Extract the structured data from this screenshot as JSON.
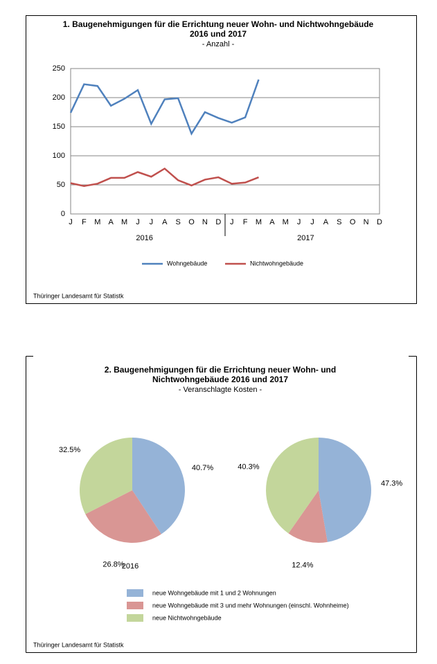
{
  "chart_data": [
    {
      "type": "line",
      "title": [
        "1. Baugenehmigungen für die Errichtung neuer Wohn- und Nichtwohngebäude",
        "2016 und 2017"
      ],
      "subtitle": "- Anzahl -",
      "categories": [
        "J",
        "F",
        "M",
        "A",
        "M",
        "J",
        "J",
        "A",
        "S",
        "O",
        "N",
        "D",
        "J",
        "F",
        "M",
        "A",
        "M",
        "J",
        "J",
        "A",
        "S",
        "O",
        "N",
        "D"
      ],
      "years": [
        "2016",
        "2017"
      ],
      "series": [
        {
          "name": "Wohngebäude",
          "color": "#4f81bd",
          "values": [
            174,
            223,
            220,
            186,
            198,
            213,
            155,
            197,
            199,
            138,
            175,
            165,
            157,
            166,
            231,
            null,
            null,
            null,
            null,
            null,
            null,
            null,
            null,
            null
          ]
        },
        {
          "name": "Nichtwohngebäude",
          "color": "#c0504d",
          "values": [
            53,
            48,
            52,
            62,
            62,
            72,
            64,
            78,
            58,
            49,
            59,
            63,
            52,
            54,
            63,
            null,
            null,
            null,
            null,
            null,
            null,
            null,
            null,
            null
          ]
        }
      ],
      "ylim": [
        0,
        250
      ],
      "yticks": [
        0,
        50,
        100,
        150,
        200,
        250
      ],
      "grid": true,
      "source": "Thüringer Landesamt für Statistk"
    },
    {
      "type": "pie",
      "title": [
        "2. Baugenehmigungen für die Errichtung neuer Wohn- und",
        "Nichtwohngebäude 2016 und 2017"
      ],
      "subtitle": "- Veranschlagte Kosten -",
      "categories": [
        "neue Wohngebäude mit 1 und 2 Wohnungen",
        "neue Wohngebäude mit 3 und mehr Wohnungen (einschl. Wohnheime)",
        "neue Nichtwohngebäude"
      ],
      "colors": [
        "#95b3d7",
        "#d99694",
        "#c3d69b"
      ],
      "pies": [
        {
          "label": "2016",
          "values": [
            40.7,
            26.8,
            32.5
          ],
          "value_labels": [
            "40.7%",
            "26.8%",
            "32.5%"
          ]
        },
        {
          "values": [
            47.3,
            12.4,
            40.3
          ],
          "value_labels": [
            "47.3%",
            "12.4%",
            "40.3%"
          ]
        }
      ],
      "source": "Thüringer Landesamt für Statistk"
    }
  ]
}
